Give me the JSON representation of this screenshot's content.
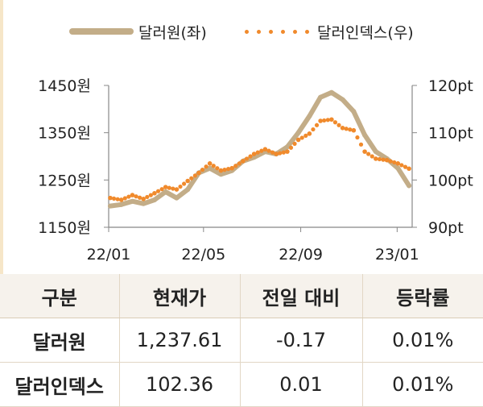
{
  "legend": {
    "won": "달러원(좌)",
    "index": "달러인덱스(우)"
  },
  "colors": {
    "won": "#c3ad88",
    "index": "#f08a2c",
    "axis": "#888888",
    "header_bg": "#f6f2ec"
  },
  "chart_data": {
    "type": "line",
    "x_ticks": [
      "22/01",
      "22/05",
      "22/09",
      "23/01"
    ],
    "left_axis": {
      "ticks": [
        "1450원",
        "1350원",
        "1250원",
        "1150원"
      ],
      "min": 1150,
      "max": 1450
    },
    "right_axis": {
      "ticks": [
        "120pt",
        "110pt",
        "100pt",
        "90pt"
      ],
      "min": 90,
      "max": 120
    },
    "series": [
      {
        "name": "달러원(좌)",
        "axis": "left",
        "style": "solid",
        "x": [
          "22/01/03",
          "22/01/17",
          "22/01/31",
          "22/02/14",
          "22/02/28",
          "22/03/14",
          "22/03/28",
          "22/04/11",
          "22/04/25",
          "22/05/09",
          "22/05/23",
          "22/06/06",
          "22/06/20",
          "22/07/04",
          "22/07/18",
          "22/08/01",
          "22/08/15",
          "22/08/29",
          "22/09/12",
          "22/09/26",
          "22/10/10",
          "22/10/24",
          "22/11/07",
          "22/11/21",
          "22/12/05",
          "22/12/19",
          "23/01/02",
          "23/01/16"
        ],
        "values": [
          1195,
          1198,
          1205,
          1200,
          1208,
          1225,
          1212,
          1230,
          1265,
          1275,
          1262,
          1270,
          1290,
          1298,
          1310,
          1305,
          1320,
          1350,
          1385,
          1425,
          1435,
          1420,
          1395,
          1345,
          1310,
          1295,
          1275,
          1238
        ]
      },
      {
        "name": "달러인덱스(우)",
        "axis": "right",
        "style": "dotted",
        "x": [
          "22/01/03",
          "22/01/17",
          "22/01/31",
          "22/02/14",
          "22/02/28",
          "22/03/14",
          "22/03/28",
          "22/04/11",
          "22/04/25",
          "22/05/09",
          "22/05/23",
          "22/06/06",
          "22/06/20",
          "22/07/04",
          "22/07/18",
          "22/08/01",
          "22/08/15",
          "22/08/29",
          "22/09/12",
          "22/09/26",
          "22/10/10",
          "22/10/24",
          "22/11/07",
          "22/11/21",
          "22/12/05",
          "22/12/19",
          "23/01/02",
          "23/01/16"
        ],
        "values": [
          96.2,
          95.8,
          96.8,
          96.0,
          97.2,
          98.5,
          98.0,
          99.8,
          101.5,
          103.5,
          102.0,
          102.5,
          104.0,
          105.5,
          106.5,
          105.5,
          106.0,
          108.5,
          109.8,
          112.5,
          112.8,
          111.0,
          110.5,
          106.0,
          104.5,
          104.2,
          103.5,
          102.4
        ]
      }
    ]
  },
  "table": {
    "headers": [
      "구분",
      "현재가",
      "전일 대비",
      "등락률"
    ],
    "rows": [
      [
        "달러원",
        "1,237.61",
        "-0.17",
        "0.01%"
      ],
      [
        "달러인덱스",
        "102.36",
        "0.01",
        "0.01%"
      ]
    ]
  }
}
